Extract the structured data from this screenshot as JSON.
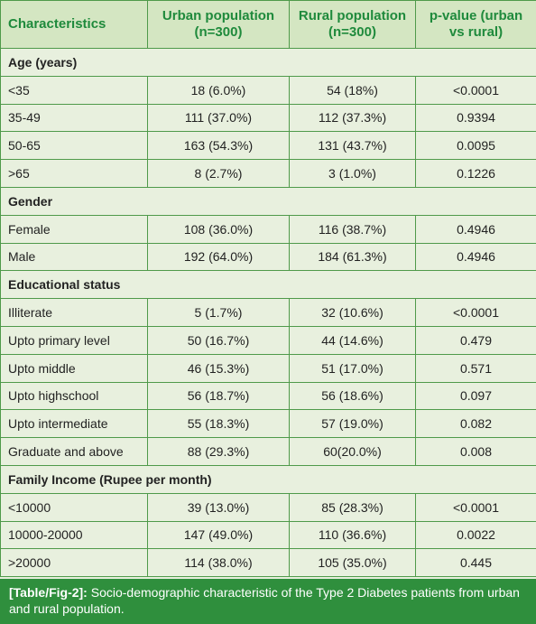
{
  "table": {
    "header": [
      "Characteristics",
      "Urban population (n=300)",
      "Rural population (n=300)",
      "p-value (urban vs rural)"
    ],
    "sections": [
      {
        "title": "Age (years)",
        "rows": [
          [
            "<35",
            "18 (6.0%)",
            "54 (18%)",
            "<0.0001"
          ],
          [
            "35-49",
            "111 (37.0%)",
            "112 (37.3%)",
            "0.9394"
          ],
          [
            "50-65",
            "163 (54.3%)",
            "131 (43.7%)",
            "0.0095"
          ],
          [
            ">65",
            "8 (2.7%)",
            "3 (1.0%)",
            "0.1226"
          ]
        ]
      },
      {
        "title": "Gender",
        "rows": [
          [
            "Female",
            "108 (36.0%)",
            "116 (38.7%)",
            "0.4946"
          ],
          [
            "Male",
            "192 (64.0%)",
            "184 (61.3%)",
            "0.4946"
          ]
        ]
      },
      {
        "title": "Educational status",
        "rows": [
          [
            "Illiterate",
            "5 (1.7%)",
            "32 (10.6%)",
            "<0.0001"
          ],
          [
            "Upto primary level",
            "50 (16.7%)",
            "44 (14.6%)",
            "0.479"
          ],
          [
            "Upto middle",
            "46 (15.3%)",
            "51 (17.0%)",
            "0.571"
          ],
          [
            "Upto highschool",
            "56 (18.7%)",
            "56 (18.6%)",
            "0.097"
          ],
          [
            "Upto intermediate",
            "55 (18.3%)",
            "57 (19.0%)",
            "0.082"
          ],
          [
            "Graduate and above",
            "88 (29.3%)",
            "60(20.0%)",
            "0.008"
          ]
        ]
      },
      {
        "title": "Family Income (Rupee per month)",
        "rows": [
          [
            "<10000",
            "39 (13.0%)",
            "85 (28.3%)",
            "<0.0001"
          ],
          [
            "10000-20000",
            "147 (49.0%)",
            "110 (36.6%)",
            "0.0022"
          ],
          [
            ">20000",
            "114 (38.0%)",
            "105 (35.0%)",
            "0.445"
          ]
        ]
      }
    ]
  },
  "caption": {
    "label": "[Table/Fig-2]:",
    "text": "Socio-demographic characteristic of the Type 2 Diabetes patients from urban and rural population."
  }
}
